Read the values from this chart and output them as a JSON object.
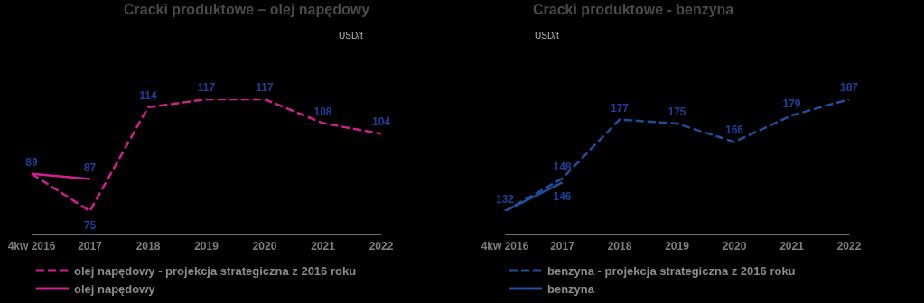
{
  "chart_data": [
    {
      "type": "line",
      "title": "Cracki produktowe – olej napędowy",
      "subtitle": "USD/t",
      "categories": [
        "4kw 2016",
        "2017",
        "2018",
        "2019",
        "2020",
        "2021",
        "2022"
      ],
      "series": [
        {
          "name": "olej napędowy - projekcja strategiczna z 2016 roku",
          "color": "#d0208f",
          "line_style": "dashed",
          "values": [
            89,
            75,
            114,
            117,
            117,
            108,
            104
          ],
          "value_labels": [
            null,
            "75",
            "114",
            "117",
            "117",
            "108",
            "104"
          ]
        },
        {
          "name": "olej napędowy",
          "color": "#d0208f",
          "line_style": "solid",
          "values": [
            89,
            87,
            null,
            null,
            null,
            null,
            null
          ],
          "value_labels": [
            "89",
            "87",
            null,
            null,
            null,
            null,
            null
          ]
        }
      ],
      "tick_labels": "x",
      "legend": "bottom",
      "marker": "none"
    },
    {
      "type": "line",
      "title": "Cracki produktowe - benzyna",
      "subtitle": "USD/t",
      "categories": [
        "4kw 2016",
        "2017",
        "2018",
        "2019",
        "2020",
        "2021",
        "2022"
      ],
      "series": [
        {
          "name": "benzyna  - projekcja strategiczna z 2016 roku",
          "color": "#1f4f9e",
          "line_style": "dashed",
          "values": [
            132,
            148,
            177,
            175,
            166,
            179,
            187
          ],
          "value_labels": [
            "132",
            "148",
            "177",
            "175",
            "166",
            "179",
            "187"
          ]
        },
        {
          "name": "benzyna",
          "color": "#1f4f9e",
          "line_style": "solid",
          "values": [
            132,
            146,
            null,
            null,
            null,
            null,
            null
          ],
          "value_labels": [
            null,
            "146",
            null,
            null,
            null,
            null,
            null
          ]
        }
      ],
      "tick_labels": "x",
      "legend": "bottom",
      "marker": "none"
    }
  ]
}
